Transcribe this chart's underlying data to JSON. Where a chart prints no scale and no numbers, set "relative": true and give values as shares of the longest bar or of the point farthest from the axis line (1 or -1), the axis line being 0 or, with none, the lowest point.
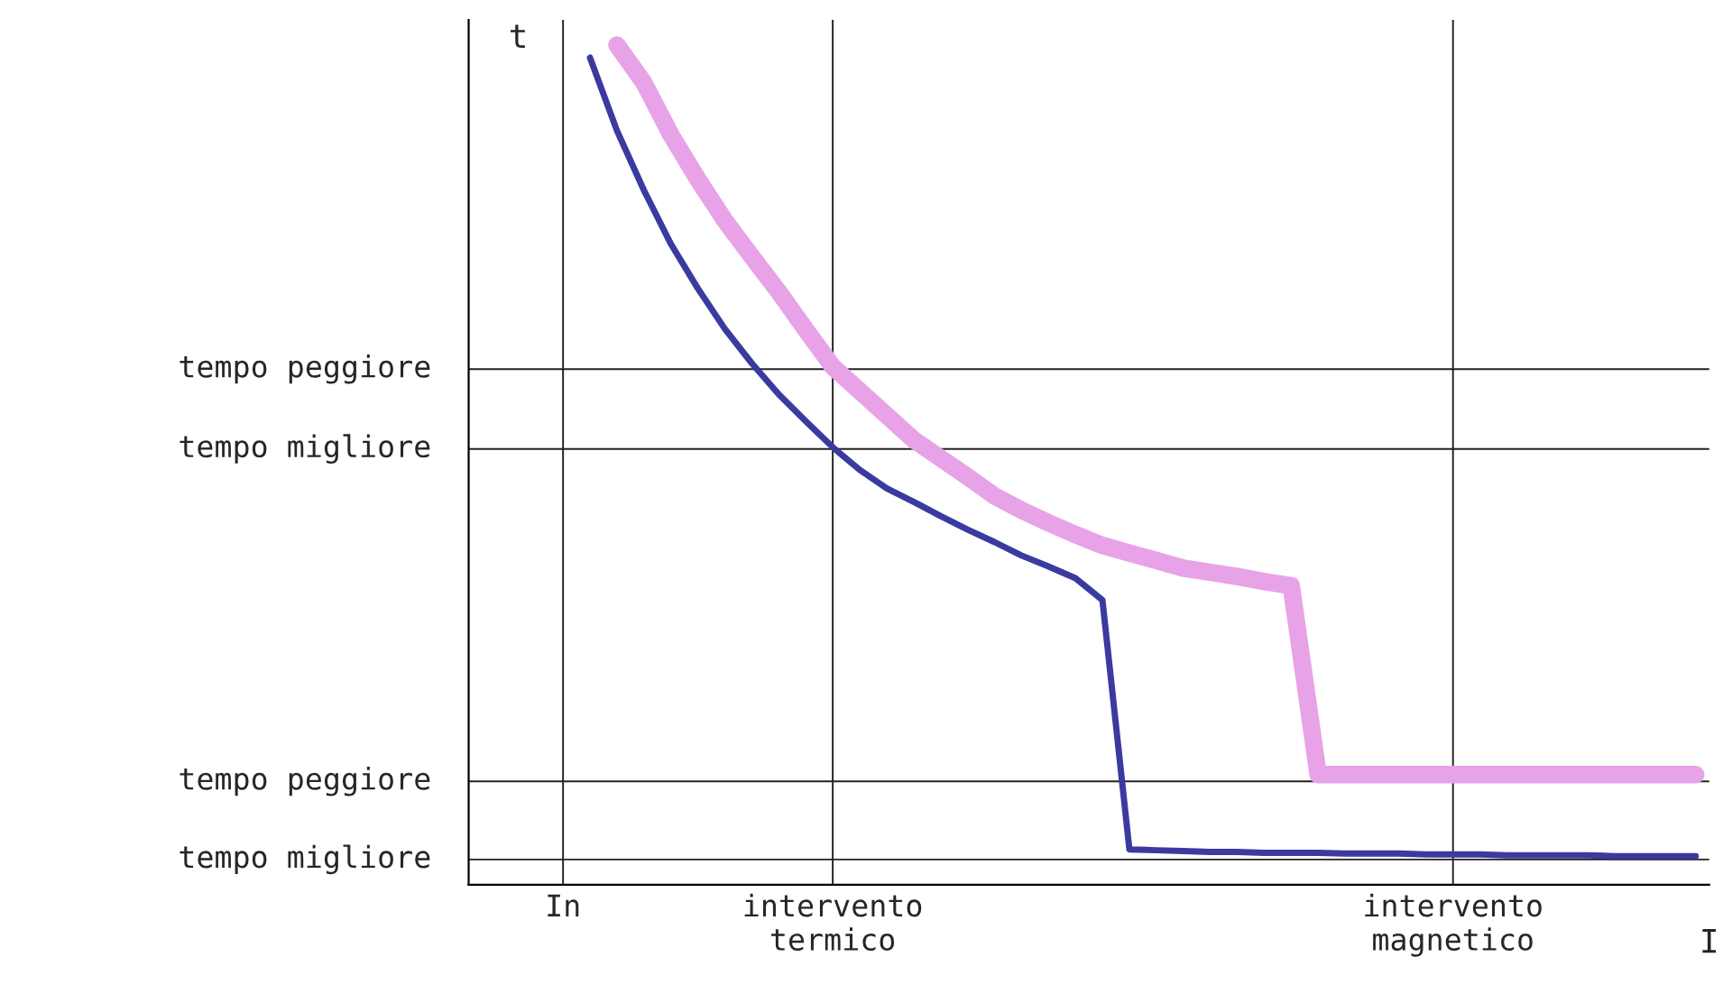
{
  "chart_data": {
    "type": "line",
    "xlabel": "I",
    "ylabel": "t",
    "relative": true,
    "categories": [
      null,
      null,
      null,
      "In",
      null,
      null,
      null,
      null,
      null,
      null,
      null,
      null,
      null,
      "intervento\ntermico",
      null,
      null,
      null,
      null,
      null,
      null,
      null,
      null,
      null,
      null,
      null,
      null,
      null,
      null,
      null,
      null,
      null,
      null,
      null,
      null,
      null,
      null,
      "intervento\nmagnetico",
      null,
      null,
      null,
      null,
      null,
      null,
      null,
      null,
      null
    ],
    "series": [
      {
        "color": "#e8a2e8",
        "values": [
          null,
          null,
          null,
          null,
          null,
          1.0,
          0.955,
          0.893,
          0.84,
          0.791,
          0.748,
          0.706,
          0.661,
          0.617,
          0.588,
          0.559,
          0.53,
          0.508,
          0.486,
          0.463,
          0.446,
          0.431,
          0.417,
          0.404,
          0.395,
          0.386,
          0.377,
          0.372,
          0.367,
          0.361,
          0.356,
          0.131,
          0.131,
          0.131,
          0.131,
          0.131,
          0.131,
          0.131,
          0.131,
          0.131,
          0.131,
          0.131,
          0.131,
          0.131,
          0.131,
          0.131
        ]
      },
      {
        "color": "#3a3aa0",
        "values": [
          null,
          null,
          null,
          null,
          0.985,
          0.898,
          0.827,
          0.763,
          0.71,
          0.662,
          0.621,
          0.584,
          0.552,
          0.521,
          0.494,
          0.472,
          0.456,
          0.439,
          0.423,
          0.408,
          0.392,
          0.379,
          0.365,
          0.339,
          0.042,
          0.041,
          0.04,
          0.039,
          0.039,
          0.038,
          0.038,
          0.038,
          0.037,
          0.037,
          0.037,
          0.036,
          0.036,
          0.036,
          0.035,
          0.035,
          0.035,
          0.035,
          0.034,
          0.034,
          0.034,
          0.034
        ]
      }
    ],
    "ref_lines": [
      {
        "axis": "x",
        "value": "In",
        "color": "#222222"
      },
      {
        "axis": "x",
        "value": "intervento\ntermico",
        "color": "#222222"
      },
      {
        "axis": "x",
        "value": "intervento\nmagnetico",
        "color": "#222222"
      },
      {
        "axis": "y",
        "value": 0.03,
        "label": "tempo migliore",
        "color": "#222222"
      },
      {
        "axis": "y",
        "value": 0.123,
        "label": "tempo peggiore",
        "color": "#222222"
      },
      {
        "axis": "y",
        "value": 0.519,
        "label": "tempo migliore",
        "color": "#222222"
      },
      {
        "axis": "y",
        "value": 0.614,
        "label": "tempo peggiore",
        "color": "#222222"
      }
    ],
    "grid": false
  }
}
